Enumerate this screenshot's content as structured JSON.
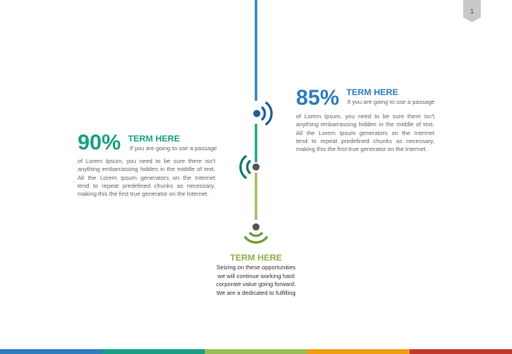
{
  "page_number": "1",
  "colors": {
    "blue": "#2e7dbd",
    "teal": "#18a085",
    "green": "#9bbb59",
    "orange": "#f39c12",
    "red": "#c0392b",
    "dark_blue": "#1f5f95",
    "dot": "#555555"
  },
  "item_right": {
    "percent": "85%",
    "title": "TERM HERE",
    "lead": "If you are going to use a passage",
    "body": [
      "of Lorem Ipsum, you need to be sure there isn't",
      "anything embarrassing hidden in the middle of text.",
      "All the Lorem Ipsum generators on the Internet",
      "tend to repeat predefined chunks as necessary,",
      "making this the first true generator on the Internet."
    ]
  },
  "item_left": {
    "percent": "90%",
    "title": "TERM HERE",
    "lead": "If you are going to use a passage",
    "body": [
      "of Lorem Ipsum, you need to be sure there isn't",
      "anything embarrassing hidden in the middle of text.",
      "All the Lorem Ipsum generators on the Internet",
      "tend to repeat predefined chunks as necessary,",
      "making this the first true generator on the Internet."
    ]
  },
  "item_bottom": {
    "title": "TERM HERE",
    "body": [
      "Seizing on these opportunities",
      "we will continue working hard",
      "corporate value going forward.",
      "We are a dedicated to fulfilling"
    ]
  },
  "icons": [
    "wifi-signal-right-icon",
    "wifi-signal-left-icon",
    "wifi-signal-down-icon"
  ]
}
